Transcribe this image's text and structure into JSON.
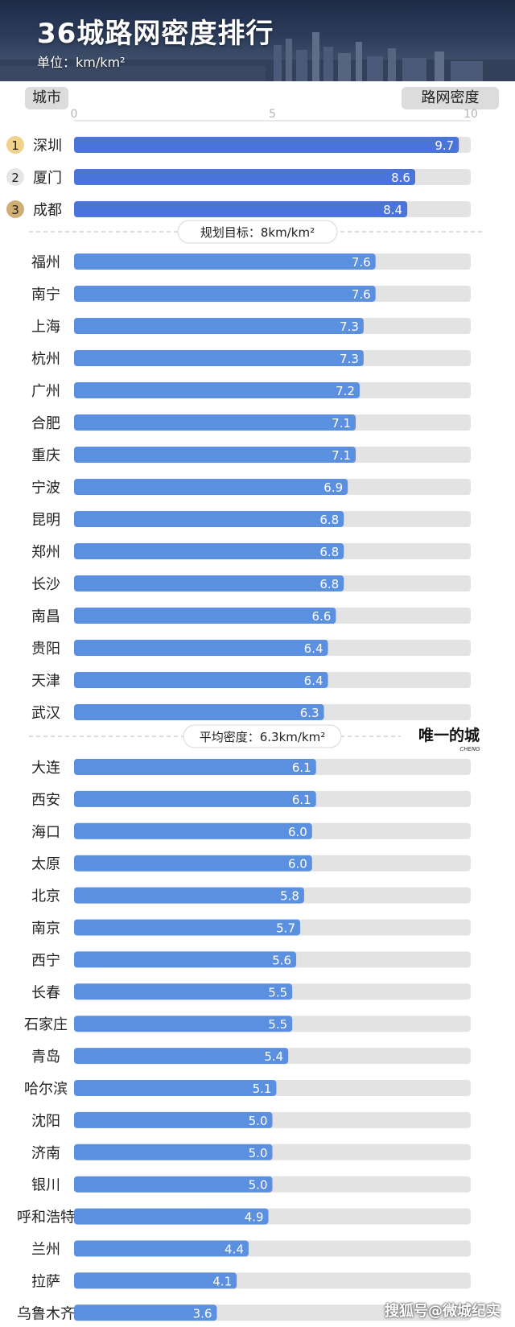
{
  "header": {
    "title": "36城路网密度排行",
    "unit": "单位：km/km²"
  },
  "columns": {
    "city": "城市",
    "density": "路网密度"
  },
  "watermark": "搜狐号@微城纪实",
  "colors": {
    "bar_top": "#4b74d8",
    "bar": "#5b8fe0",
    "track": "#e3e3e3",
    "rank1": "#f0d28a",
    "rank2": "#e6e6e6",
    "rank3": "#cfae73"
  },
  "chart_data": {
    "type": "bar",
    "orientation": "horizontal",
    "xlim": [
      0,
      10
    ],
    "xticks": [
      0,
      5,
      10
    ],
    "categories": [
      "深圳",
      "厦门",
      "成都",
      "福州",
      "南宁",
      "上海",
      "杭州",
      "广州",
      "合肥",
      "重庆",
      "宁波",
      "昆明",
      "郑州",
      "长沙",
      "南昌",
      "贵阳",
      "天津",
      "武汉",
      "大连",
      "西安",
      "海口",
      "太原",
      "北京",
      "南京",
      "西宁",
      "长春",
      "石家庄",
      "青岛",
      "哈尔滨",
      "沈阳",
      "济南",
      "银川",
      "呼和浩特",
      "兰州",
      "拉萨",
      "乌鲁木齐"
    ],
    "values": [
      9.7,
      8.6,
      8.4,
      7.6,
      7.6,
      7.3,
      7.3,
      7.2,
      7.1,
      7.1,
      6.9,
      6.8,
      6.8,
      6.8,
      6.6,
      6.4,
      6.4,
      6.3,
      6.1,
      6.1,
      6.0,
      6.0,
      5.8,
      5.7,
      5.6,
      5.5,
      5.5,
      5.4,
      5.1,
      5.0,
      5.0,
      5.0,
      4.9,
      4.4,
      4.1,
      3.6
    ],
    "value_labels": [
      "9.7",
      "8.6",
      "8.4",
      "7.6",
      "7.6",
      "7.3",
      "7.3",
      "7.2",
      "7.1",
      "7.1",
      "6.9",
      "6.8",
      "6.8",
      "6.8",
      "6.6",
      "6.4",
      "6.4",
      "6.3",
      "6.1",
      "6.1",
      "6.0",
      "6.0",
      "5.8",
      "5.7",
      "5.6",
      "5.5",
      "5.5",
      "5.4",
      "5.1",
      "5.0",
      "5.0",
      "5.0",
      "4.9",
      "4.4",
      "4.1",
      "3.6"
    ],
    "ranks": [
      "1",
      "2",
      "3"
    ],
    "annotations": [
      {
        "after_index": 2,
        "text": "规划目标：8km/km²"
      },
      {
        "after_index": 17,
        "text": "平均密度：6.3km/km²",
        "brand": "唯一的城",
        "brand_sub": "CHENG"
      }
    ]
  }
}
